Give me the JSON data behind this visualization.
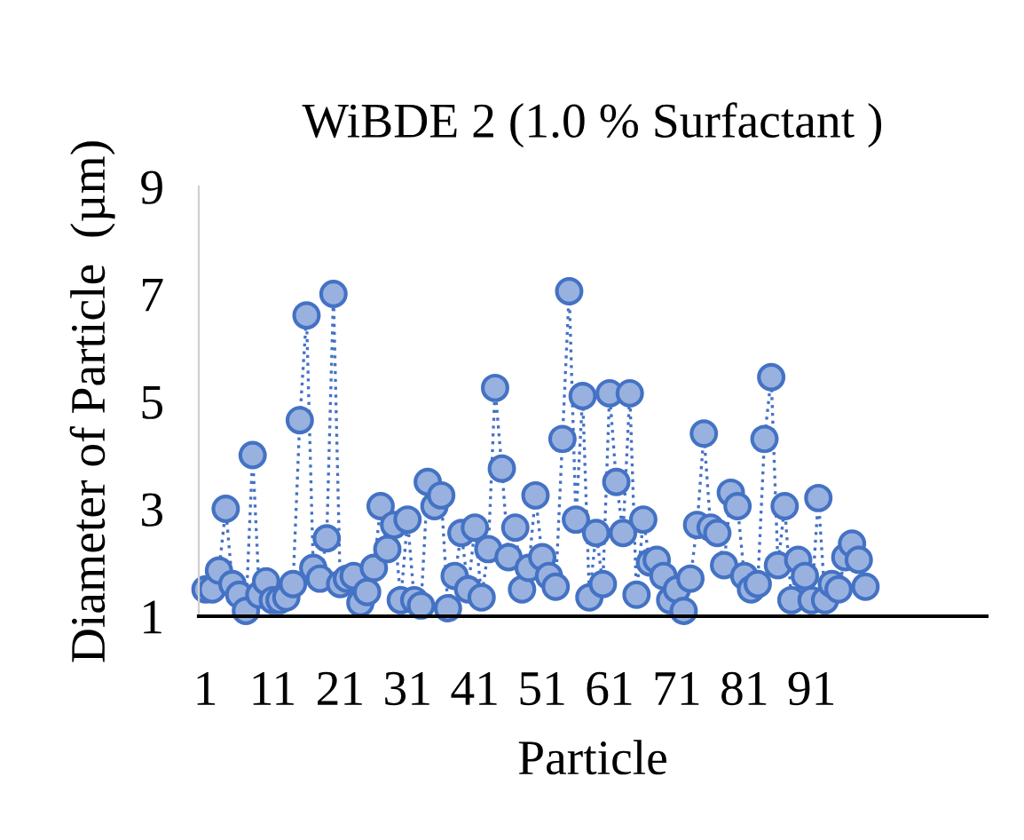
{
  "chart_data": {
    "type": "line",
    "title": "WiBDE 2 (1.0 % Surfactant )",
    "xlabel": "Particle",
    "ylabel": "Diameter of Particle  (µm)",
    "x": [
      1,
      2,
      3,
      4,
      5,
      6,
      7,
      8,
      9,
      10,
      11,
      12,
      13,
      14,
      15,
      16,
      17,
      18,
      19,
      20,
      21,
      22,
      23,
      24,
      25,
      26,
      27,
      28,
      29,
      30,
      31,
      32,
      33,
      34,
      35,
      36,
      37,
      38,
      39,
      40,
      41,
      42,
      43,
      44,
      45,
      46,
      47,
      48,
      49,
      50,
      51,
      52,
      53,
      54,
      55,
      56,
      57,
      58,
      59,
      60,
      61,
      62,
      63,
      64,
      65,
      66,
      67,
      68,
      69,
      70,
      71,
      72,
      73,
      74,
      75,
      76,
      77,
      78,
      79,
      80,
      81,
      82,
      83,
      84,
      85,
      86,
      87,
      88,
      89,
      90,
      91,
      92,
      93,
      94,
      95,
      96,
      97,
      98,
      99
    ],
    "series": [
      {
        "color": "#4472c4",
        "values": [
          1.5,
          1.5,
          1.85,
          3.0,
          1.6,
          1.4,
          1.1,
          4.0,
          1.4,
          1.65,
          1.3,
          1.3,
          1.35,
          1.6,
          4.65,
          6.6,
          1.9,
          1.7,
          2.45,
          7.0,
          1.6,
          1.7,
          1.75,
          1.25,
          1.45,
          1.9,
          3.05,
          2.25,
          2.7,
          1.3,
          2.8,
          1.3,
          1.2,
          3.5,
          3.05,
          3.25,
          1.15,
          1.75,
          2.55,
          1.5,
          2.65,
          1.35,
          2.25,
          5.25,
          3.75,
          2.1,
          2.65,
          1.5,
          1.9,
          3.25,
          2.1,
          1.75,
          1.55,
          4.3,
          7.05,
          2.8,
          5.1,
          1.35,
          2.55,
          1.6,
          5.15,
          3.5,
          2.55,
          5.15,
          1.4,
          2.8,
          2.0,
          2.05,
          1.75,
          1.3,
          1.5,
          1.1,
          1.7,
          2.7,
          4.4,
          2.65,
          2.55,
          1.95,
          3.3,
          3.05,
          1.75,
          1.5,
          1.6,
          4.3,
          5.45,
          1.95,
          3.05,
          1.3,
          2.05,
          1.75,
          1.3,
          3.2,
          1.3,
          1.6,
          1.5,
          2.1,
          2.35,
          2.05,
          1.55
        ]
      }
    ],
    "xlim": [
      0,
      117
    ],
    "xticks": [
      1,
      11,
      21,
      31,
      41,
      51,
      61,
      71,
      81,
      91
    ],
    "ylim": [
      1,
      9
    ],
    "yticks": [
      1,
      3,
      5,
      7,
      9
    ],
    "marker": "circle",
    "line_style": "dotted"
  }
}
